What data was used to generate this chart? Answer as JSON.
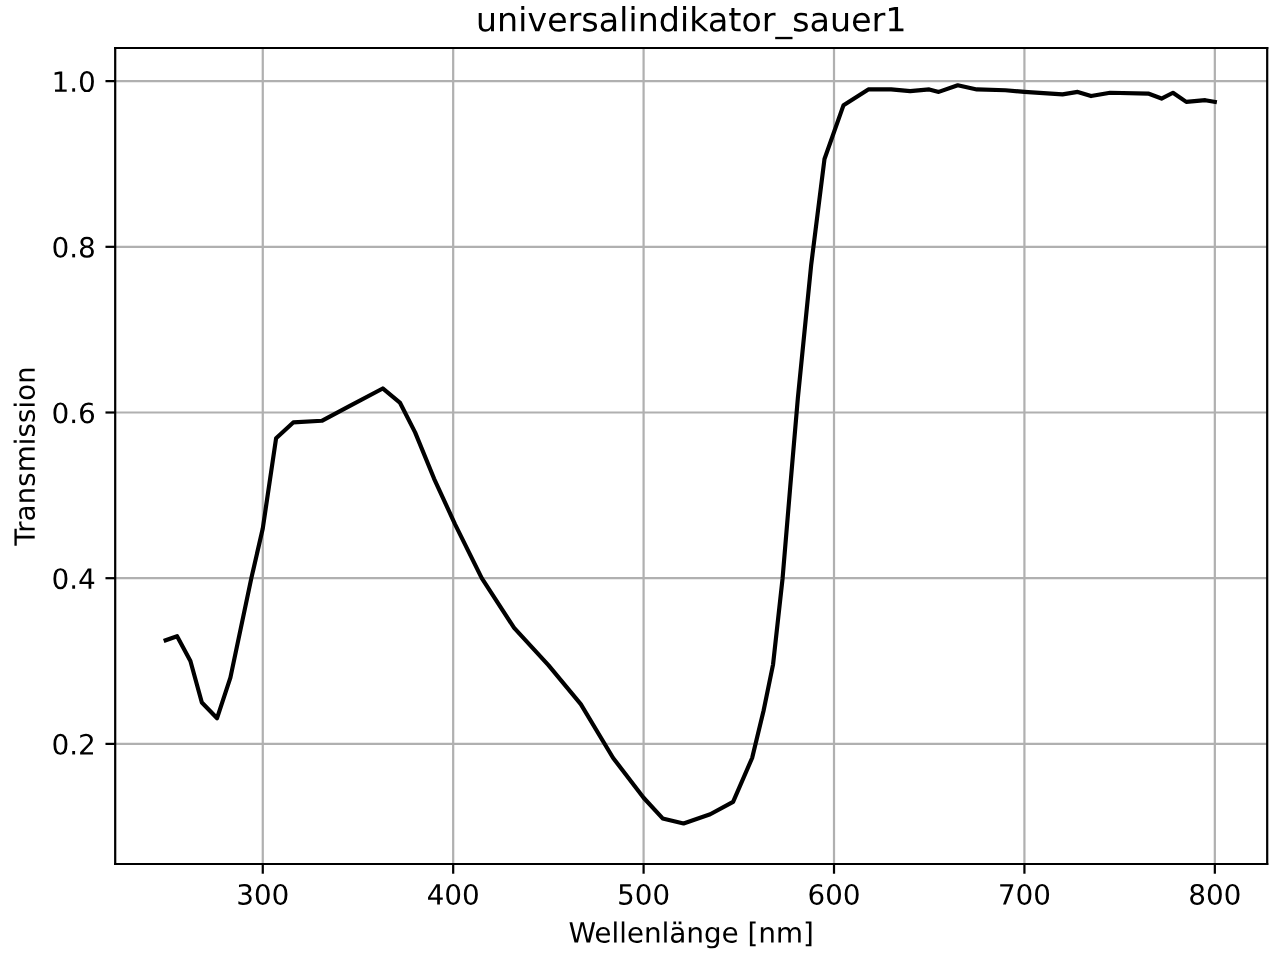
{
  "chart_data": {
    "type": "line",
    "title": "universalindikator_sauer1",
    "xlabel": "Wellenlänge [nm]",
    "ylabel": "Transmission",
    "series": [
      {
        "color": "#000000",
        "x": [
          249,
          255,
          262,
          268,
          276,
          283,
          294,
          300,
          307,
          316,
          331,
          345,
          363,
          372,
          380,
          390,
          401,
          415,
          432,
          450,
          467,
          484,
          500,
          510,
          521,
          535,
          547,
          557,
          563,
          568,
          573,
          577,
          581,
          588,
          595,
          605,
          618,
          630,
          640,
          650,
          655,
          665,
          675,
          690,
          700,
          720,
          728,
          735,
          745,
          765,
          772,
          778,
          785,
          795,
          800
        ],
        "values": [
          0.325,
          0.33,
          0.3,
          0.25,
          0.231,
          0.28,
          0.4,
          0.46,
          0.569,
          0.588,
          0.59,
          0.607,
          0.629,
          0.612,
          0.576,
          0.52,
          0.465,
          0.4,
          0.34,
          0.295,
          0.248,
          0.183,
          0.135,
          0.11,
          0.104,
          0.115,
          0.13,
          0.183,
          0.24,
          0.296,
          0.4,
          0.51,
          0.617,
          0.778,
          0.906,
          0.971,
          0.99,
          0.99,
          0.988,
          0.99,
          0.987,
          0.995,
          0.99,
          0.989,
          0.987,
          0.984,
          0.987,
          0.982,
          0.986,
          0.985,
          0.979,
          0.986,
          0.975,
          0.977,
          0.975
        ]
      }
    ],
    "xlim": [
      222.5,
      827.5
    ],
    "xticks": [
      300,
      400,
      500,
      600,
      700,
      800
    ],
    "ylim": [
      0.055,
      1.04
    ],
    "yticks": [
      0.2,
      0.4,
      0.6,
      0.8,
      {
        "value": 1,
        "label": "1.0"
      }
    ],
    "grid": true,
    "marker": "none",
    "line_style": "solid"
  }
}
